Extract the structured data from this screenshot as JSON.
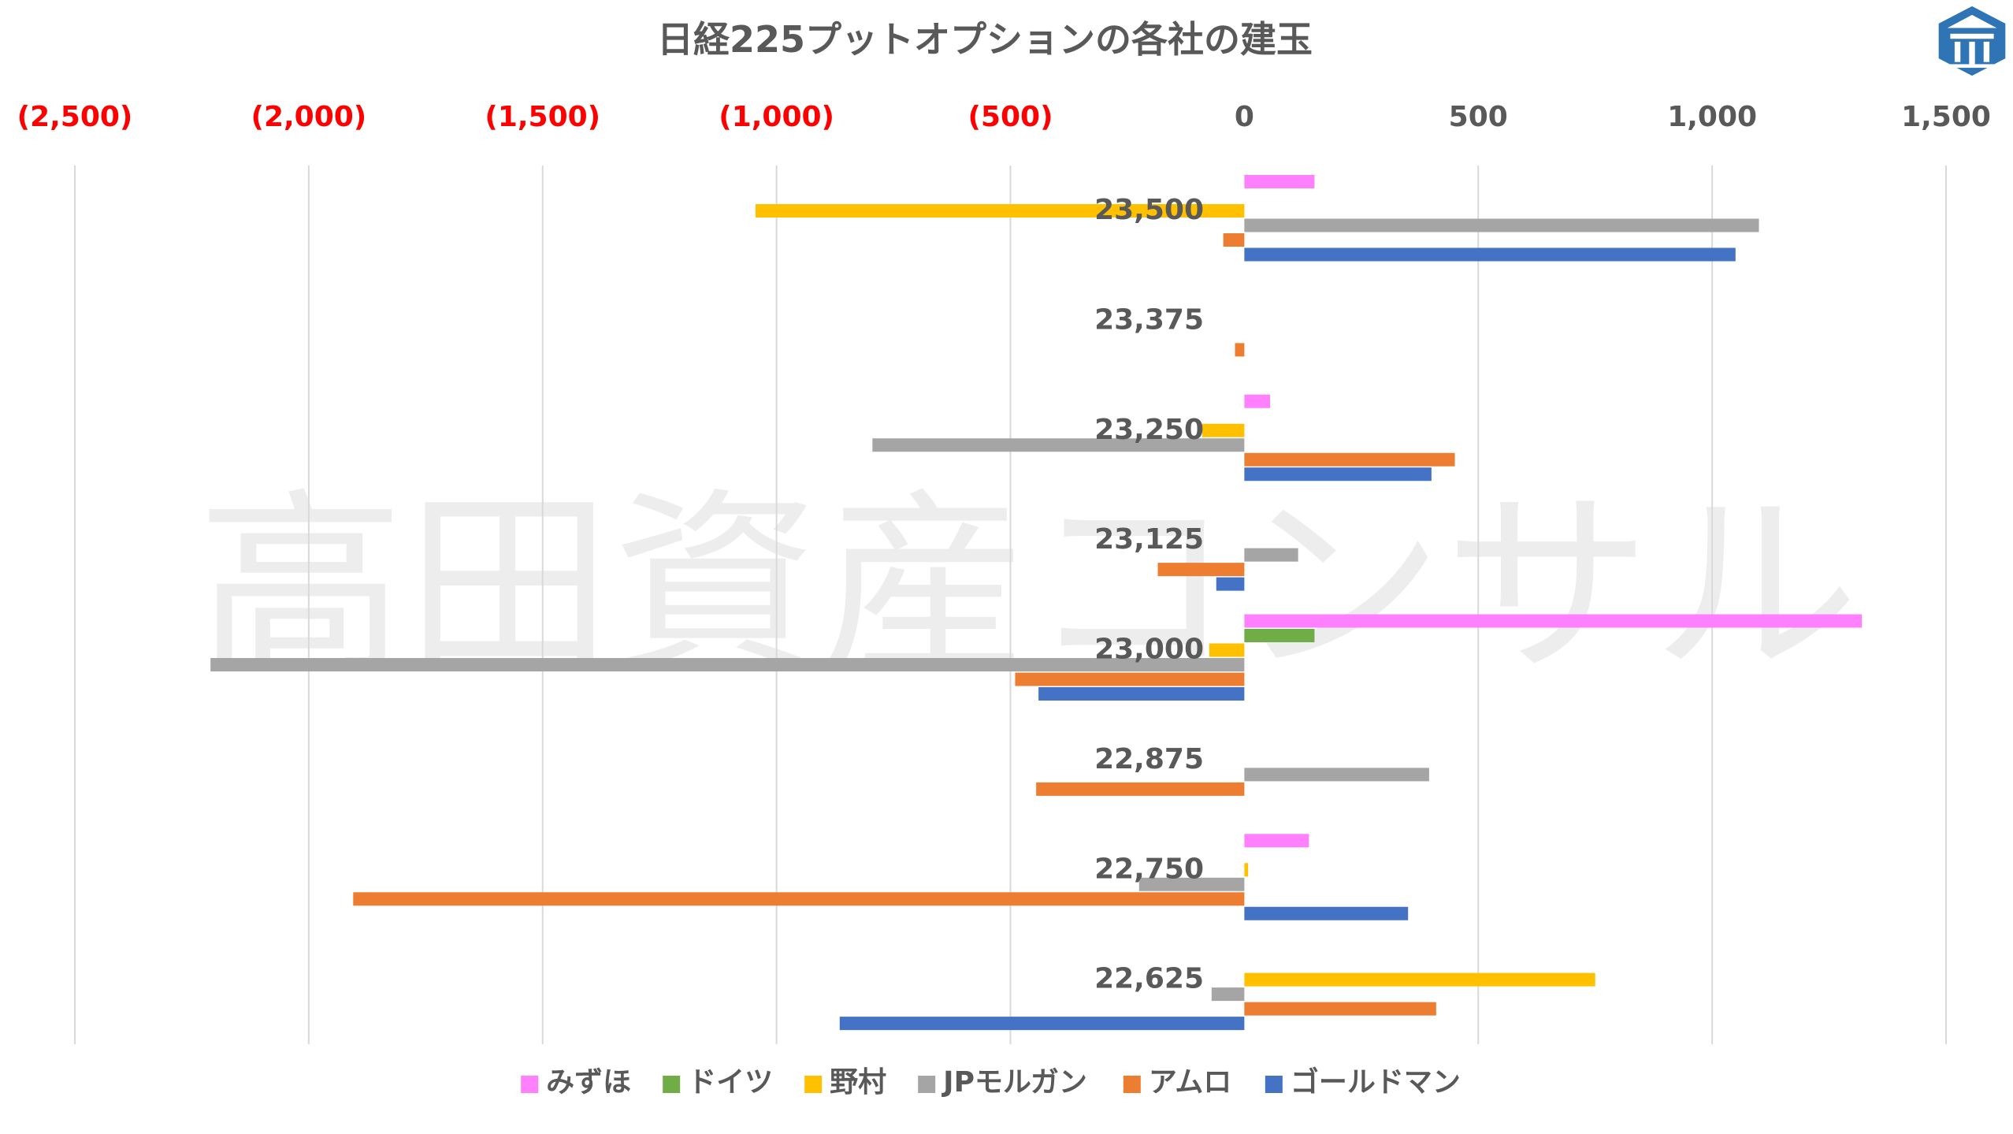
{
  "chart_data": {
    "type": "bar",
    "orientation": "horizontal",
    "title": "日経225プットオプションの各社の建玉",
    "watermark": "高田資産コンサル",
    "x_axis": {
      "position": "top",
      "range": [
        -2500,
        1500
      ],
      "ticks": [
        -2500,
        -2000,
        -1500,
        -1000,
        -500,
        0,
        500,
        1000,
        1500
      ],
      "tick_labels": [
        "(2,500)",
        "(2,000)",
        "(1,500)",
        "(1,000)",
        "(500)",
        "0",
        "500",
        "1,000",
        "1,500"
      ],
      "negative_label_color": "#ff0000",
      "positive_label_color": "#595959",
      "grid": true
    },
    "categories": [
      "23,500",
      "23,375",
      "23,250",
      "23,125",
      "23,000",
      "22,875",
      "22,750",
      "22,625"
    ],
    "series": [
      {
        "name": "みずほ",
        "color": "#ff80ff",
        "values": [
          150,
          0,
          55,
          0,
          1320,
          0,
          138,
          0
        ]
      },
      {
        "name": "ドイツ",
        "color": "#70ad47",
        "values": [
          0,
          0,
          0,
          0,
          150,
          0,
          0,
          0
        ]
      },
      {
        "name": "野村",
        "color": "#ffc000",
        "values": [
          -1045,
          0,
          -90,
          0,
          -75,
          0,
          8,
          750
        ]
      },
      {
        "name": "JPモルガン",
        "color": "#a5a5a5",
        "values": [
          1100,
          0,
          -795,
          115,
          -2210,
          395,
          -225,
          -70
        ]
      },
      {
        "name": "アムロ",
        "color": "#ed7d31",
        "values": [
          -45,
          -20,
          450,
          -185,
          -490,
          -445,
          -1905,
          410
        ]
      },
      {
        "name": "ゴールドマン",
        "color": "#4472c4",
        "values": [
          1050,
          0,
          400,
          -60,
          -440,
          0,
          350,
          -865
        ]
      }
    ],
    "legend": {
      "position": "bottom"
    }
  }
}
